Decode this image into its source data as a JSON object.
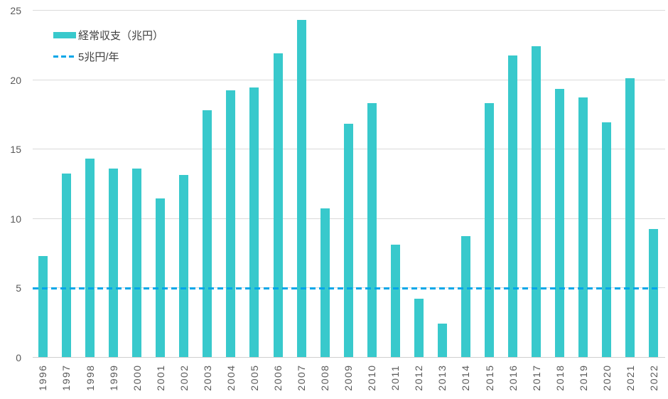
{
  "chart_data": {
    "type": "bar",
    "title": "",
    "categories": [
      "1996",
      "1997",
      "1998",
      "1999",
      "2000",
      "2001",
      "2002",
      "2003",
      "2004",
      "2005",
      "2006",
      "2007",
      "2008",
      "2009",
      "2010",
      "2011",
      "2012",
      "2013",
      "2014",
      "2015",
      "2016",
      "2017",
      "2018",
      "2019",
      "2020",
      "2021",
      "2022"
    ],
    "series": [
      {
        "name": "経常収支（兆円）",
        "values": [
          7.3,
          13.2,
          14.3,
          13.6,
          13.6,
          11.4,
          13.1,
          17.8,
          19.2,
          19.4,
          21.9,
          24.3,
          10.7,
          16.8,
          18.3,
          8.1,
          4.2,
          2.4,
          8.7,
          18.3,
          21.7,
          22.4,
          19.3,
          18.7,
          16.9,
          20.1,
          9.2
        ]
      }
    ],
    "reference_line": {
      "label": "5兆円/年",
      "value": 5
    },
    "xlabel": "",
    "ylabel": "",
    "ylim": [
      0,
      25
    ],
    "yticks": [
      0,
      5,
      10,
      15,
      20,
      25
    ],
    "grid": "horizontal",
    "legend_position": "top-left",
    "colors": {
      "bar": "#38c9cc",
      "reference_line": "#00a6e8",
      "gridline": "#dadada",
      "axis_text": "#595959",
      "legend_text": "#404040"
    }
  }
}
